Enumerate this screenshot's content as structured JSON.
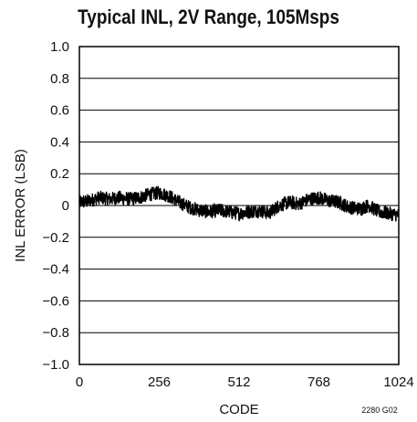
{
  "chart_data": {
    "type": "line",
    "title": "Typical INL, 2V Range, 105Msps",
    "xlabel": "CODE",
    "ylabel": "INL ERROR (LSB)",
    "figure_id": "2280 G02",
    "xlim": [
      0,
      1024
    ],
    "ylim": [
      -1.0,
      1.0
    ],
    "x_ticks": [
      0,
      256,
      512,
      768,
      1024
    ],
    "x_tick_labels": [
      "0",
      "256",
      "512",
      "768",
      "1024"
    ],
    "y_ticks": [
      1.0,
      0.8,
      0.6,
      0.4,
      0.2,
      0,
      -0.2,
      -0.4,
      -0.6,
      -0.8,
      -1.0
    ],
    "y_tick_labels": [
      "1.0",
      "0.8",
      "0.6",
      "0.4",
      "0.2",
      "0",
      "−0.2",
      "−0.4",
      "−0.6",
      "−0.8",
      "−1.0"
    ],
    "grid": true,
    "series": [
      {
        "color": "#000000",
        "noise_band": 0.045,
        "x": [
          0,
          32,
          64,
          96,
          128,
          160,
          192,
          224,
          256,
          288,
          320,
          352,
          384,
          416,
          448,
          480,
          512,
          544,
          576,
          608,
          640,
          672,
          704,
          736,
          768,
          800,
          832,
          864,
          896,
          928,
          960,
          992,
          1024
        ],
        "values": [
          0.02,
          0.03,
          0.05,
          0.04,
          0.05,
          0.04,
          0.05,
          0.07,
          0.08,
          0.06,
          0.02,
          -0.01,
          -0.03,
          -0.04,
          -0.03,
          -0.04,
          -0.05,
          -0.04,
          -0.03,
          -0.05,
          0.0,
          0.02,
          0.01,
          0.04,
          0.05,
          0.03,
          0.02,
          -0.01,
          -0.02,
          0.0,
          -0.04,
          -0.05,
          -0.06
        ]
      }
    ]
  }
}
